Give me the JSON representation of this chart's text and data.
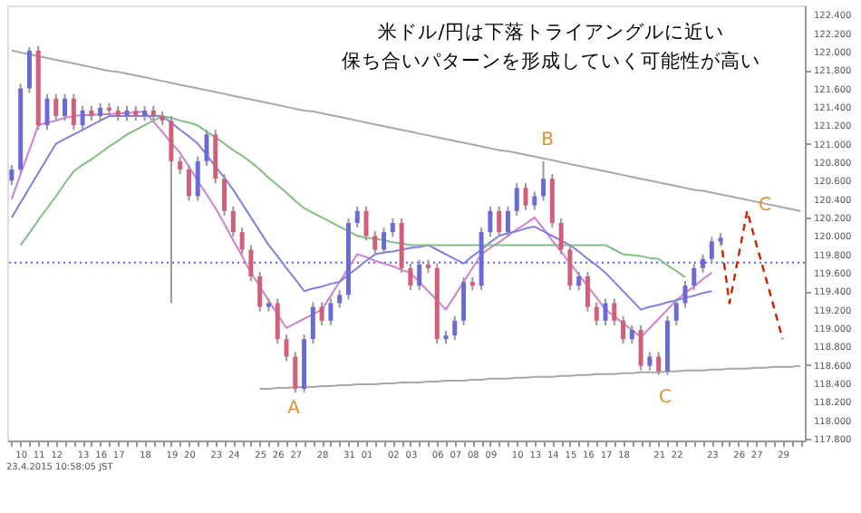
{
  "chart_data": {
    "type": "candlestick",
    "categories": [
      null,
      "10",
      null,
      "11",
      null,
      "12",
      null,
      null,
      "13",
      null,
      "16",
      null,
      "17",
      null,
      null,
      "18",
      null,
      null,
      "19",
      null,
      "20",
      null,
      null,
      "23",
      null,
      "24",
      null,
      null,
      "25",
      null,
      "26",
      null,
      "27",
      null,
      null,
      "28",
      null,
      null,
      "31",
      null,
      "01",
      null,
      null,
      "02",
      null,
      "03",
      null,
      null,
      "06",
      null,
      "07",
      null,
      "08",
      null,
      "09",
      null,
      null,
      "10",
      null,
      "13",
      null,
      "14",
      null,
      "15",
      null,
      "16",
      null,
      "17",
      null,
      "18",
      null,
      null,
      null,
      "21",
      null,
      "22",
      null,
      null,
      null,
      "23",
      null,
      null,
      "26",
      null,
      "27",
      null,
      null,
      "29",
      null,
      null
    ],
    "ohlc": [
      [
        120.6,
        120.77,
        120.55,
        120.72
      ],
      [
        120.72,
        121.65,
        120.67,
        121.6
      ],
      [
        121.6,
        122.05,
        121.55,
        122.01
      ],
      [
        122.01,
        122.06,
        121.15,
        121.2
      ],
      [
        121.2,
        121.54,
        121.15,
        121.49
      ],
      [
        121.49,
        121.54,
        121.25,
        121.3
      ],
      [
        121.3,
        121.54,
        121.25,
        121.49
      ],
      [
        121.49,
        121.54,
        121.15,
        121.2
      ],
      [
        121.2,
        121.41,
        121.15,
        121.36
      ],
      [
        121.36,
        121.41,
        121.25,
        121.3
      ],
      [
        121.3,
        121.44,
        121.25,
        121.39
      ],
      [
        121.39,
        121.44,
        121.31,
        121.36
      ],
      [
        121.36,
        121.41,
        121.25,
        121.3
      ],
      [
        121.3,
        121.41,
        121.25,
        121.36
      ],
      [
        121.36,
        121.41,
        121.25,
        121.3
      ],
      [
        121.3,
        121.41,
        121.25,
        121.36
      ],
      [
        121.36,
        121.41,
        121.25,
        121.3
      ],
      [
        121.3,
        121.35,
        121.2,
        121.25
      ],
      [
        121.25,
        121.3,
        119.27,
        120.81
      ],
      [
        120.81,
        120.86,
        120.67,
        120.72
      ],
      [
        120.72,
        120.77,
        120.38,
        120.43
      ],
      [
        120.43,
        120.86,
        120.38,
        120.81
      ],
      [
        120.81,
        121.15,
        120.76,
        121.1
      ],
      [
        121.1,
        121.15,
        120.57,
        120.62
      ],
      [
        120.62,
        120.67,
        120.22,
        120.27
      ],
      [
        120.27,
        120.32,
        119.99,
        120.04
      ],
      [
        120.04,
        120.09,
        119.8,
        119.85
      ],
      [
        119.85,
        119.9,
        119.51,
        119.56
      ],
      [
        119.56,
        119.61,
        119.18,
        119.23
      ],
      [
        119.23,
        119.32,
        119.18,
        119.27
      ],
      [
        119.27,
        119.32,
        118.83,
        118.88
      ],
      [
        118.88,
        118.93,
        118.64,
        118.69
      ],
      [
        118.69,
        118.74,
        118.3,
        118.34
      ],
      [
        118.34,
        118.93,
        118.3,
        118.88
      ],
      [
        118.88,
        119.28,
        118.83,
        119.23
      ],
      [
        119.23,
        119.28,
        119.03,
        119.08
      ],
      [
        119.08,
        119.32,
        119.03,
        119.27
      ],
      [
        119.27,
        119.41,
        119.22,
        119.36
      ],
      [
        119.36,
        120.19,
        119.31,
        120.14
      ],
      [
        120.14,
        120.32,
        120.09,
        120.27
      ],
      [
        120.27,
        120.32,
        119.95,
        120.0
      ],
      [
        120.0,
        120.05,
        119.8,
        119.85
      ],
      [
        119.85,
        120.09,
        119.8,
        120.04
      ],
      [
        120.04,
        120.19,
        119.99,
        120.14
      ],
      [
        120.14,
        120.19,
        119.6,
        119.65
      ],
      [
        119.65,
        119.7,
        119.41,
        119.46
      ],
      [
        119.46,
        119.74,
        119.41,
        119.69
      ],
      [
        119.69,
        119.74,
        119.6,
        119.65
      ],
      [
        119.65,
        119.7,
        118.83,
        118.88
      ],
      [
        118.88,
        118.97,
        118.83,
        118.92
      ],
      [
        118.92,
        119.13,
        118.87,
        119.08
      ],
      [
        119.08,
        119.55,
        119.03,
        119.5
      ],
      [
        119.5,
        119.55,
        119.41,
        119.46
      ],
      [
        119.46,
        120.09,
        119.41,
        120.04
      ],
      [
        120.04,
        120.32,
        119.99,
        120.27
      ],
      [
        120.27,
        120.32,
        119.99,
        120.04
      ],
      [
        120.04,
        120.32,
        119.99,
        120.27
      ],
      [
        120.27,
        120.57,
        120.22,
        120.52
      ],
      [
        120.52,
        120.57,
        120.28,
        120.33
      ],
      [
        120.33,
        120.48,
        120.28,
        120.43
      ],
      [
        120.43,
        120.81,
        120.38,
        120.62
      ],
      [
        120.62,
        120.67,
        120.09,
        120.14
      ],
      [
        120.14,
        120.19,
        119.8,
        119.85
      ],
      [
        119.85,
        119.9,
        119.41,
        119.46
      ],
      [
        119.46,
        119.61,
        119.41,
        119.56
      ],
      [
        119.56,
        119.61,
        119.18,
        119.23
      ],
      [
        119.23,
        119.28,
        119.03,
        119.08
      ],
      [
        119.08,
        119.32,
        119.03,
        119.27
      ],
      [
        119.27,
        119.32,
        119.03,
        119.08
      ],
      [
        119.08,
        119.13,
        118.83,
        118.88
      ],
      [
        118.88,
        119.03,
        118.83,
        118.98
      ],
      [
        118.98,
        119.03,
        118.54,
        118.59
      ],
      [
        118.59,
        118.74,
        118.54,
        118.69
      ],
      [
        118.69,
        118.74,
        118.49,
        118.53
      ],
      [
        118.53,
        119.13,
        118.49,
        119.08
      ],
      [
        119.08,
        119.32,
        119.03,
        119.27
      ],
      [
        119.27,
        119.51,
        119.22,
        119.46
      ],
      [
        119.46,
        119.7,
        119.41,
        119.65
      ],
      [
        119.65,
        119.8,
        119.6,
        119.75
      ],
      [
        119.75,
        119.99,
        119.7,
        119.94
      ],
      [
        119.94,
        120.03,
        119.89,
        119.98
      ],
      null,
      null,
      null,
      null,
      null,
      null,
      null,
      null,
      null
    ],
    "colors": [
      "#6b6bd6",
      "#6b6bd6",
      "#6b6bd6",
      "#d0607a",
      "#6b6bd6",
      "#d0607a",
      "#6b6bd6",
      "#d0607a",
      "#6b6bd6",
      "#d0607a",
      "#6b6bd6",
      "#d0607a",
      "#d0607a",
      "#6b6bd6",
      "#d0607a",
      "#6b6bd6",
      "#d0607a",
      "#d0607a",
      "#d0607a",
      "#d0607a",
      "#d0607a",
      "#6b6bd6",
      "#6b6bd6",
      "#d0607a",
      "#d0607a",
      "#d0607a",
      "#d0607a",
      "#d0607a",
      "#d0607a",
      "#6b6bd6",
      "#d0607a",
      "#d0607a",
      "#d0607a",
      "#6b6bd6",
      "#6b6bd6",
      "#d0607a",
      "#6b6bd6",
      "#6b6bd6",
      "#6b6bd6",
      "#6b6bd6",
      "#d0607a",
      "#d0607a",
      "#6b6bd6",
      "#6b6bd6",
      "#d0607a",
      "#d0607a",
      "#6b6bd6",
      "#d0607a",
      "#d0607a",
      "#6b6bd6",
      "#6b6bd6",
      "#6b6bd6",
      "#d0607a",
      "#6b6bd6",
      "#6b6bd6",
      "#d0607a",
      "#6b6bd6",
      "#6b6bd6",
      "#d0607a",
      "#6b6bd6",
      "#6b6bd6",
      "#d0607a",
      "#d0607a",
      "#d0607a",
      "#6b6bd6",
      "#d0607a",
      "#d0607a",
      "#6b6bd6",
      "#d0607a",
      "#d0607a",
      "#6b6bd6",
      "#d0607a",
      "#6b6bd6",
      "#d0607a",
      "#6b6bd6",
      "#6b6bd6",
      "#6b6bd6",
      "#6b6bd6",
      "#6b6bd6",
      "#6b6bd6",
      "#6b6bd6",
      null,
      null,
      null,
      null,
      null,
      null,
      null,
      null,
      null
    ],
    "series": [
      {
        "type": "line",
        "color": "#d080d0",
        "values": [
          120.4,
          120.67,
          120.93,
          121.2,
          121.23,
          121.25,
          121.28,
          121.3,
          121.31,
          121.31,
          121.32,
          121.32,
          121.33,
          121.33,
          121.34,
          121.35,
          121.24,
          121.13,
          121.01,
          120.9,
          120.75,
          120.6,
          120.45,
          120.3,
          120.13,
          119.95,
          119.78,
          119.6,
          119.45,
          119.3,
          119.15,
          119.0,
          119.05,
          119.1,
          119.15,
          119.2,
          119.35,
          119.5,
          119.65,
          119.8,
          119.77,
          119.73,
          119.7,
          119.67,
          119.63,
          119.6,
          119.5,
          119.4,
          119.3,
          119.2,
          119.35,
          119.5,
          119.65,
          119.8,
          119.87,
          119.93,
          120.0,
          120.07,
          120.13,
          120.2,
          120.08,
          119.95,
          119.83,
          119.7,
          119.58,
          119.45,
          119.33,
          119.2,
          119.13,
          119.05,
          118.98,
          118.9,
          119.0,
          119.1,
          119.2,
          119.3,
          119.38,
          119.45,
          119.53,
          119.6,
          null,
          null,
          null,
          null,
          null,
          null,
          null,
          null,
          null,
          null
        ]
      },
      {
        "type": "line",
        "color": "#8080e0",
        "values": [
          120.2,
          120.36,
          120.52,
          120.68,
          120.84,
          121.0,
          121.05,
          121.1,
          121.15,
          121.2,
          121.25,
          121.3,
          121.3,
          121.3,
          121.3,
          121.3,
          121.3,
          121.3,
          121.23,
          121.15,
          121.08,
          121.0,
          120.88,
          120.75,
          120.63,
          120.5,
          120.35,
          120.2,
          120.05,
          119.9,
          119.78,
          119.65,
          119.53,
          119.4,
          119.43,
          119.45,
          119.48,
          119.5,
          119.58,
          119.65,
          119.73,
          119.8,
          119.82,
          119.83,
          119.85,
          119.87,
          119.88,
          119.9,
          119.85,
          119.8,
          119.75,
          119.7,
          119.78,
          119.85,
          119.93,
          120.0,
          120.03,
          120.05,
          120.08,
          120.1,
          120.05,
          120.0,
          119.95,
          119.9,
          119.83,
          119.75,
          119.68,
          119.6,
          119.5,
          119.4,
          119.3,
          119.2,
          119.23,
          119.25,
          119.28,
          119.3,
          119.33,
          119.35,
          119.38,
          119.4,
          null,
          null,
          null,
          null,
          null,
          null,
          null,
          null,
          null,
          null
        ]
      },
      {
        "type": "line",
        "color": "#80c080",
        "values": [
          null,
          119.9,
          120.03,
          120.17,
          120.3,
          120.43,
          120.57,
          120.7,
          120.77,
          120.83,
          120.9,
          120.97,
          121.03,
          121.1,
          121.15,
          121.2,
          121.25,
          121.3,
          121.28,
          121.25,
          121.23,
          121.2,
          121.13,
          121.07,
          121.0,
          120.93,
          120.87,
          120.8,
          120.72,
          120.63,
          120.55,
          120.47,
          120.38,
          120.3,
          120.25,
          120.2,
          120.15,
          120.1,
          120.05,
          120.0,
          119.98,
          119.97,
          119.95,
          119.93,
          119.92,
          119.9,
          119.9,
          119.9,
          119.9,
          119.9,
          119.9,
          119.9,
          119.9,
          119.9,
          119.9,
          119.9,
          119.9,
          119.9,
          119.9,
          119.9,
          119.9,
          119.9,
          119.9,
          119.9,
          119.9,
          119.9,
          119.9,
          119.9,
          119.85,
          119.8,
          119.79,
          119.78,
          119.76,
          119.75,
          119.68,
          119.62,
          119.55,
          null,
          null,
          null,
          null,
          null,
          null,
          null,
          null,
          null,
          null,
          null,
          null,
          null
        ]
      },
      {
        "type": "line",
        "color": "#a8a8a8",
        "values": [
          122.01,
          121.99,
          121.97,
          121.95,
          121.93,
          121.91,
          121.89,
          121.87,
          121.85,
          121.83,
          121.81,
          121.79,
          121.78,
          121.76,
          121.74,
          121.72,
          121.7,
          121.68,
          121.66,
          121.64,
          121.62,
          121.6,
          121.58,
          121.56,
          121.54,
          121.52,
          121.5,
          121.48,
          121.46,
          121.44,
          121.42,
          121.4,
          121.38,
          121.36,
          121.35,
          121.33,
          121.31,
          121.29,
          121.27,
          121.25,
          121.23,
          121.21,
          121.19,
          121.17,
          121.15,
          121.13,
          121.11,
          121.09,
          121.07,
          121.05,
          121.03,
          121.01,
          120.99,
          120.97,
          120.95,
          120.93,
          120.92,
          120.9,
          120.88,
          120.86,
          120.84,
          120.82,
          120.8,
          120.78,
          120.76,
          120.74,
          120.72,
          120.7,
          120.68,
          120.66,
          120.64,
          120.62,
          120.6,
          120.58,
          120.56,
          120.54,
          120.52,
          120.5,
          120.49,
          120.47,
          120.45,
          120.43,
          120.41,
          120.39,
          120.37,
          120.35,
          120.33,
          120.31,
          120.29,
          120.27
        ]
      },
      {
        "type": "line",
        "color": "#a8a8a8",
        "values": [
          null,
          null,
          null,
          null,
          null,
          null,
          null,
          null,
          null,
          null,
          null,
          null,
          null,
          null,
          null,
          null,
          null,
          null,
          null,
          null,
          null,
          null,
          null,
          null,
          null,
          null,
          null,
          null,
          118.34,
          118.34,
          118.35,
          118.35,
          118.36,
          118.36,
          118.36,
          118.37,
          118.37,
          118.38,
          118.38,
          118.39,
          118.39,
          118.39,
          118.4,
          118.4,
          118.41,
          118.41,
          118.41,
          118.42,
          118.42,
          118.43,
          118.43,
          118.43,
          118.44,
          118.44,
          118.45,
          118.45,
          118.45,
          118.46,
          118.46,
          118.47,
          118.47,
          118.47,
          118.48,
          118.48,
          118.49,
          118.49,
          118.5,
          118.5,
          118.5,
          118.51,
          118.51,
          118.52,
          118.52,
          118.52,
          118.53,
          118.53,
          118.54,
          118.54,
          118.54,
          118.55,
          118.55,
          118.56,
          118.56,
          118.56,
          118.57,
          118.57,
          118.58,
          118.58,
          118.58,
          118.59
        ]
      },
      {
        "type": "line",
        "color": "#cc2200",
        "line_style": "dashed",
        "values": [
          null,
          null,
          null,
          null,
          null,
          null,
          null,
          null,
          null,
          null,
          null,
          null,
          null,
          null,
          null,
          null,
          null,
          null,
          null,
          null,
          null,
          null,
          null,
          null,
          null,
          null,
          null,
          null,
          null,
          null,
          null,
          null,
          null,
          null,
          null,
          null,
          null,
          null,
          null,
          null,
          null,
          null,
          null,
          null,
          null,
          null,
          null,
          null,
          null,
          null,
          null,
          null,
          null,
          null,
          null,
          null,
          null,
          null,
          null,
          null,
          null,
          null,
          null,
          null,
          null,
          null,
          null,
          null,
          null,
          null,
          null,
          null,
          null,
          null,
          null,
          null,
          null,
          null,
          null,
          null,
          119.98,
          119.27,
          119.77,
          120.27,
          119.92,
          119.58,
          119.23,
          118.88,
          null,
          null
        ]
      }
    ],
    "ref_lines": [
      {
        "axis": "y",
        "value": 119.71,
        "color": "#6060ff",
        "line_style": "dotted"
      }
    ],
    "ylim": [
      117.78,
      122.5
    ],
    "yticks": [
      {
        "value": 117.8,
        "label": "117.800"
      },
      {
        "value": 118,
        "label": "118.000"
      },
      {
        "value": 118.2,
        "label": "118.200"
      },
      {
        "value": 118.4,
        "label": "118.400"
      },
      {
        "value": 118.6,
        "label": "118.600"
      },
      {
        "value": 118.8,
        "label": "118.800"
      },
      {
        "value": 119,
        "label": "119.000"
      },
      {
        "value": 119.2,
        "label": "119.200"
      },
      {
        "value": 119.4,
        "label": "119.400"
      },
      {
        "value": 119.6,
        "label": "119.600"
      },
      {
        "value": 119.8,
        "label": "119.800"
      },
      {
        "value": 120,
        "label": "120.000"
      },
      {
        "value": 120.2,
        "label": "120.200"
      },
      {
        "value": 120.4,
        "label": "120.400"
      },
      {
        "value": 120.6,
        "label": "120.600"
      },
      {
        "value": 120.8,
        "label": "120.800"
      },
      {
        "value": 121,
        "label": "121.000"
      },
      {
        "value": 121.2,
        "label": "121.200"
      },
      {
        "value": 121.4,
        "label": "121.400"
      },
      {
        "value": 121.6,
        "label": "121.600"
      },
      {
        "value": 121.8,
        "label": "121.800"
      },
      {
        "value": 122,
        "label": "122.000"
      },
      {
        "value": 122.2,
        "label": "122.200"
      },
      {
        "value": 122.4,
        "label": "122.400"
      }
    ],
    "grid": false,
    "annotations": [
      "米ドル/円は下落トライアングルに近い保ち合いパターンを形成していく可能性が高い",
      "A",
      "B",
      "C",
      "C",
      "23.4.2015 10:58:05 JST"
    ]
  }
}
